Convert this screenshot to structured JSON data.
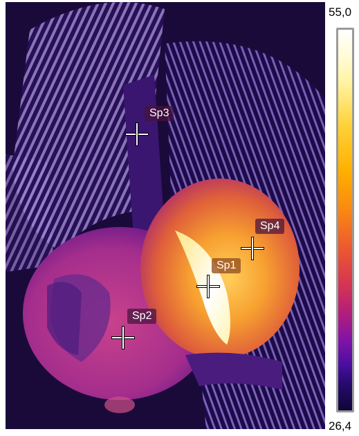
{
  "scale": {
    "max_label": "55,0",
    "min_label": "26,4",
    "colors": [
      "#ffffff",
      "#ffd23a",
      "#ffb000",
      "#ee5a30",
      "#b51f78",
      "#4a0ea0",
      "#100636"
    ]
  },
  "spots": [
    {
      "id": "sp1",
      "label": "Sp1"
    },
    {
      "id": "sp2",
      "label": "Sp2"
    },
    {
      "id": "sp3",
      "label": "Sp3"
    },
    {
      "id": "sp4",
      "label": "Sp4"
    }
  ]
}
